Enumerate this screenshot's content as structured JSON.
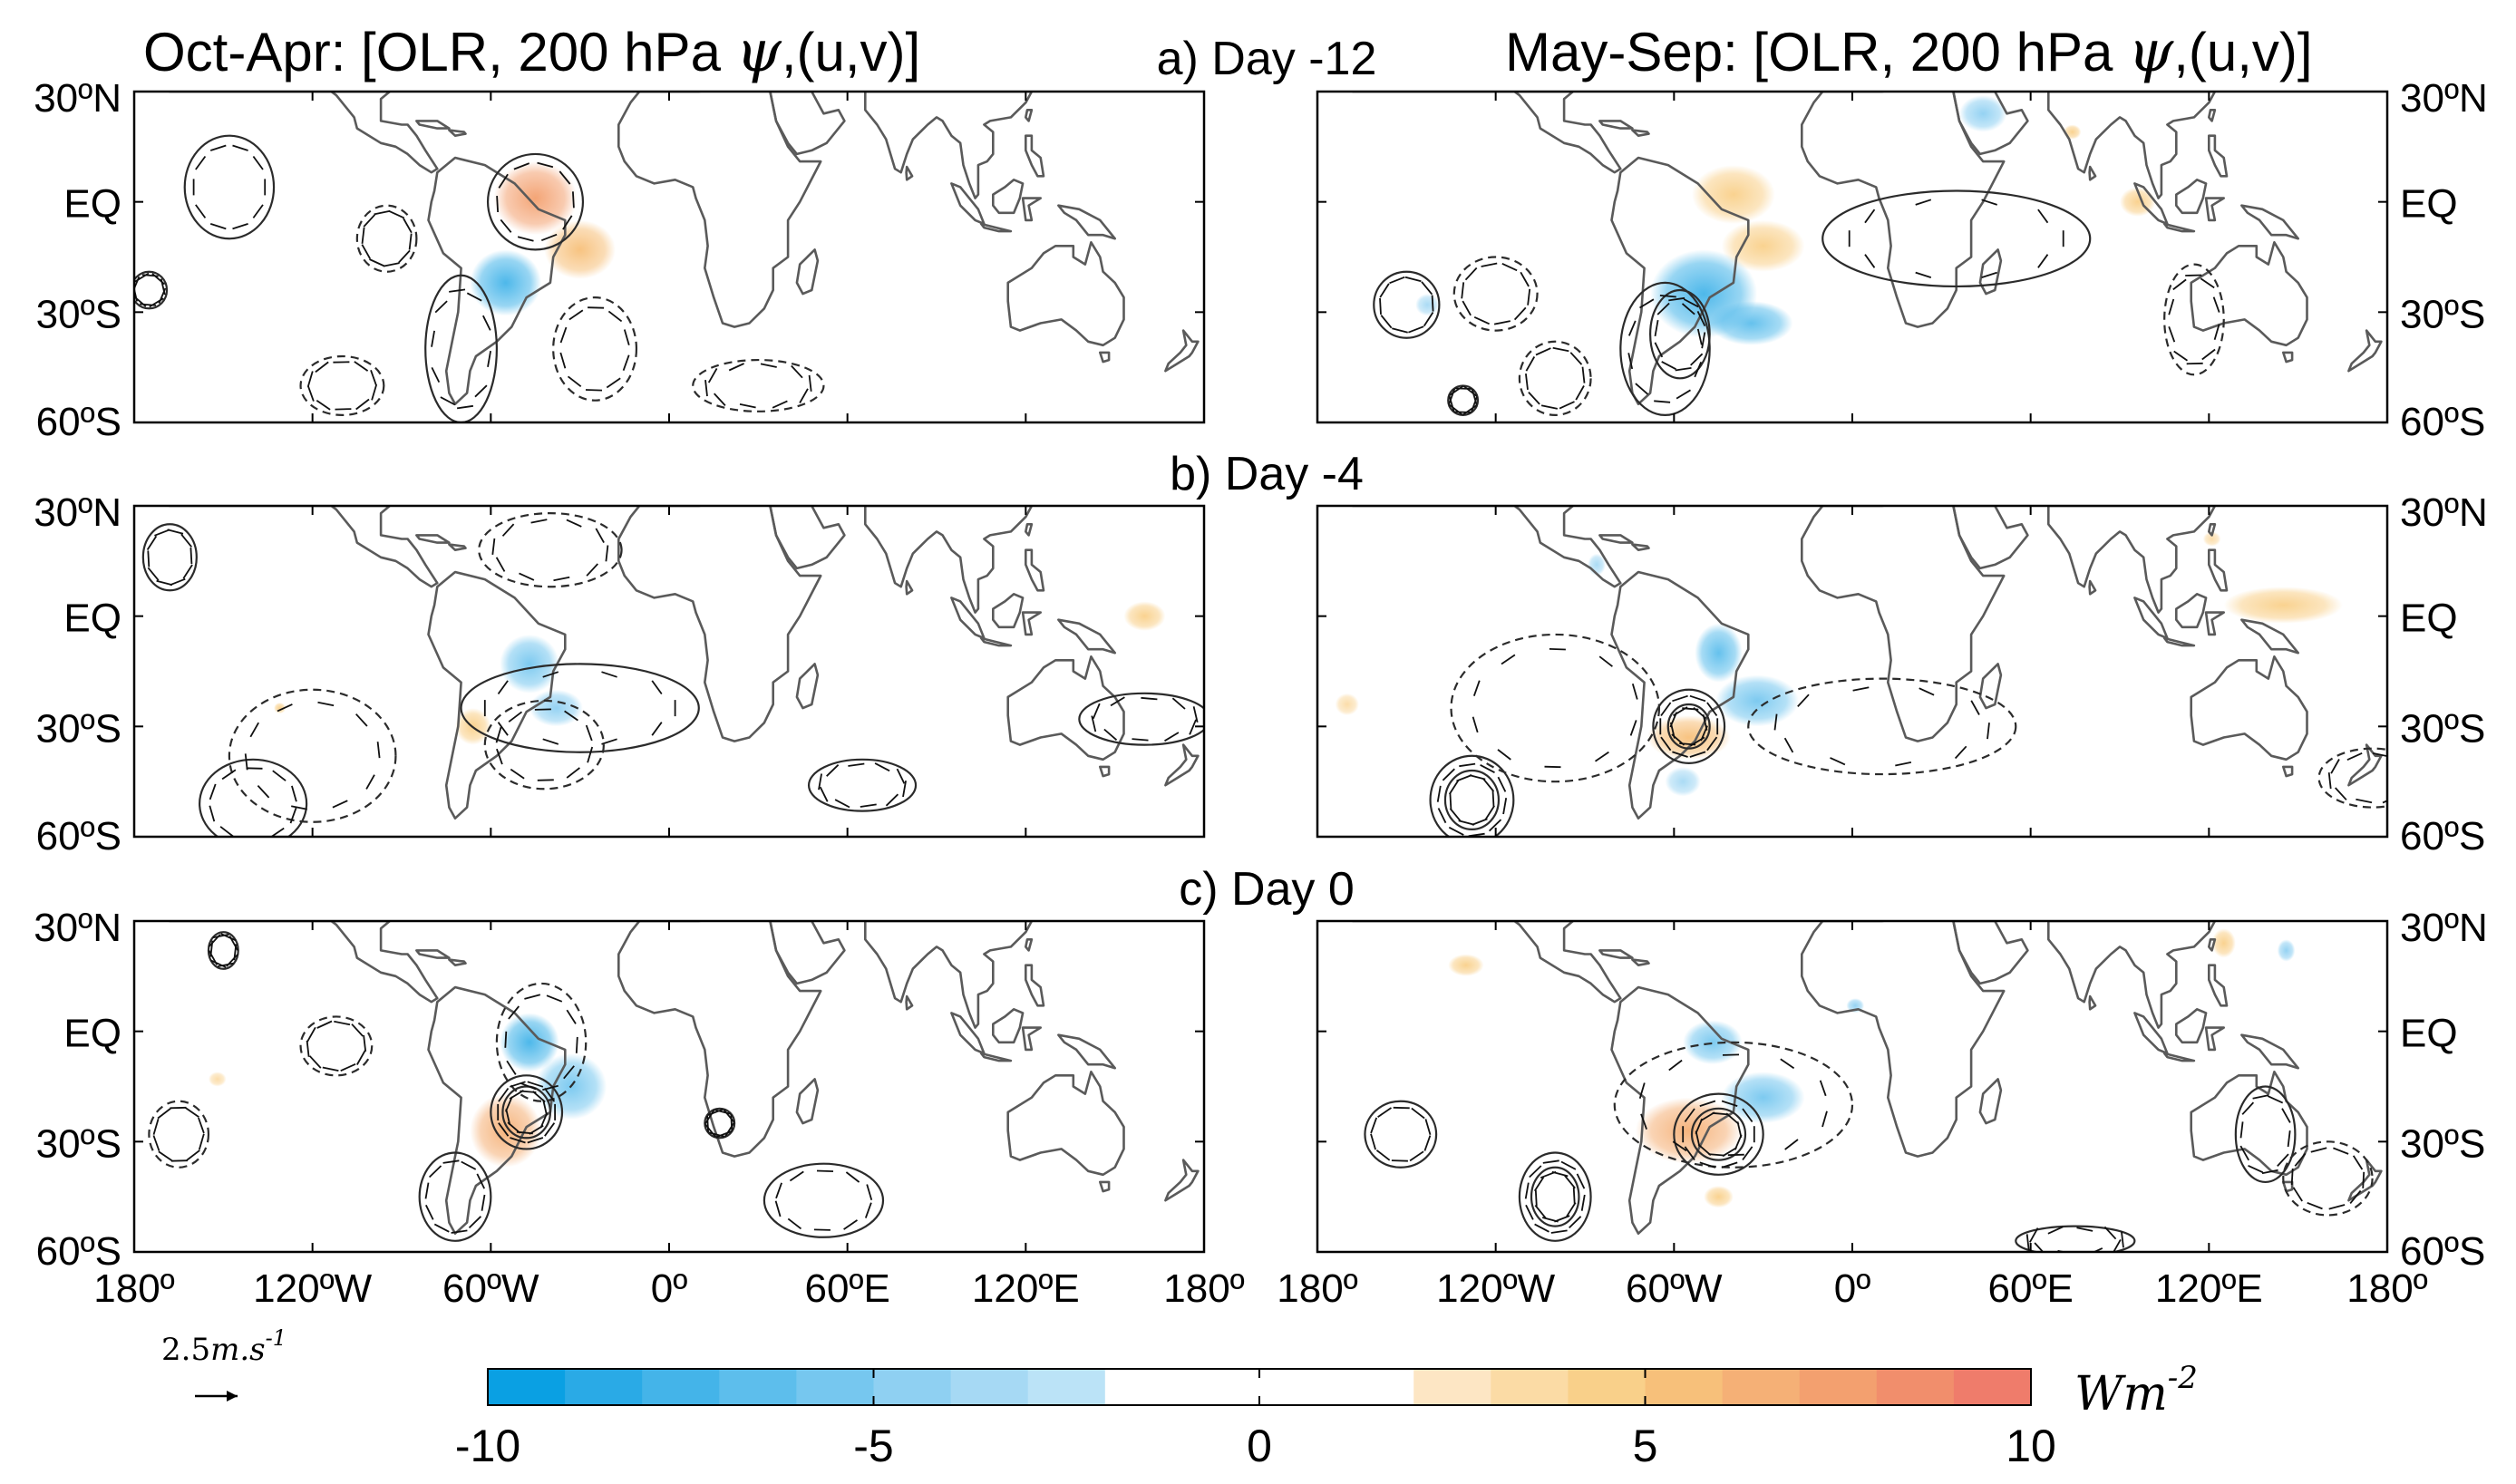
{
  "figure": {
    "left_title": "Oct-Apr: [OLR, 200 hPa ",
    "right_title": "May-Sep: [OLR, 200 hPa ",
    "psi_symbol": "ψ",
    "title_suffix": ",(u,v)]"
  },
  "rows": [
    {
      "label": "a) Day -12"
    },
    {
      "label": "b) Day -4"
    },
    {
      "label": "c) Day 0"
    }
  ],
  "chart_data": {
    "type": "heatmap",
    "description_units": "OLR anomaly shading (W m-2) with 200 hPa streamfunction contours and wind vectors",
    "x_ticks": [
      "180º",
      "120ºW",
      "60ºW",
      "0º",
      "60ºE",
      "120ºE",
      "180º"
    ],
    "x_range": [
      -180,
      180
    ],
    "y_ticks": [
      "30ºN",
      "EQ",
      "30ºS",
      "60ºS"
    ],
    "y_range": [
      -60,
      30
    ],
    "panels": [
      {
        "row": 0,
        "col": 0,
        "name": "oct-apr-day-12",
        "olr_blobs": [
          {
            "lon": -45,
            "lat": 1,
            "rx": 14,
            "ry": 10,
            "value": 7
          },
          {
            "lon": -30,
            "lat": -13,
            "rx": 12,
            "ry": 8,
            "value": 5
          },
          {
            "lon": -55,
            "lat": -22,
            "rx": 12,
            "ry": 9,
            "value": -8
          }
        ],
        "psi_contours": [
          {
            "lon": -148,
            "lat": 4,
            "rx": 15,
            "ry": 14,
            "style": "solid"
          },
          {
            "lon": -175,
            "lat": -24,
            "rx": 6,
            "ry": 5,
            "style": "solid"
          },
          {
            "lon": -70,
            "lat": -40,
            "rx": 12,
            "ry": 20,
            "style": "solid"
          },
          {
            "lon": -45,
            "lat": 0,
            "rx": 16,
            "ry": 13,
            "style": "solid"
          },
          {
            "lon": -25,
            "lat": -40,
            "rx": 14,
            "ry": 14,
            "style": "dashed"
          },
          {
            "lon": -95,
            "lat": -10,
            "rx": 10,
            "ry": 9,
            "style": "dashed"
          },
          {
            "lon": 30,
            "lat": -50,
            "rx": 22,
            "ry": 7,
            "style": "dashed"
          },
          {
            "lon": -110,
            "lat": -50,
            "rx": 14,
            "ry": 8,
            "style": "dashed"
          }
        ]
      },
      {
        "row": 0,
        "col": 1,
        "name": "may-sep-day-12",
        "olr_blobs": [
          {
            "lon": -40,
            "lat": 2,
            "rx": 14,
            "ry": 8,
            "value": 4
          },
          {
            "lon": -30,
            "lat": -12,
            "rx": 14,
            "ry": 7,
            "value": 4
          },
          {
            "lon": -50,
            "lat": -25,
            "rx": 18,
            "ry": 12,
            "value": -8
          },
          {
            "lon": -34,
            "lat": -33,
            "rx": 14,
            "ry": 6,
            "value": -7
          },
          {
            "lon": 44,
            "lat": 24,
            "rx": 8,
            "ry": 5,
            "value": -5
          },
          {
            "lon": -143,
            "lat": -28,
            "rx": 4,
            "ry": 3,
            "value": -4
          },
          {
            "lon": 96,
            "lat": 0,
            "rx": 6,
            "ry": 4,
            "value": 4
          },
          {
            "lon": 74,
            "lat": 19,
            "rx": 3,
            "ry": 2,
            "value": 4
          }
        ],
        "psi_contours": [
          {
            "lon": 35,
            "lat": -10,
            "rx": 45,
            "ry": 13,
            "style": "solid"
          },
          {
            "lon": -63,
            "lat": -40,
            "rx": 15,
            "ry": 18,
            "style": "solid"
          },
          {
            "lon": -58,
            "lat": -36,
            "rx": 10,
            "ry": 12,
            "style": "solid"
          },
          {
            "lon": -150,
            "lat": -28,
            "rx": 11,
            "ry": 9,
            "style": "solid"
          },
          {
            "lon": -131,
            "lat": -54,
            "rx": 5,
            "ry": 4,
            "style": "solid"
          },
          {
            "lon": -120,
            "lat": -25,
            "rx": 14,
            "ry": 10,
            "style": "dashed"
          },
          {
            "lon": -100,
            "lat": -48,
            "rx": 12,
            "ry": 10,
            "style": "dashed"
          },
          {
            "lon": 115,
            "lat": -32,
            "rx": 10,
            "ry": 15,
            "style": "dashed"
          }
        ]
      },
      {
        "row": 1,
        "col": 0,
        "name": "oct-apr-day-4",
        "olr_blobs": [
          {
            "lon": -47,
            "lat": -13,
            "rx": 10,
            "ry": 8,
            "value": -6
          },
          {
            "lon": -38,
            "lat": -25,
            "rx": 9,
            "ry": 5,
            "value": -5
          },
          {
            "lon": -66,
            "lat": -30,
            "rx": 6,
            "ry": 5,
            "value": 4
          },
          {
            "lon": 160,
            "lat": 0,
            "rx": 7,
            "ry": 4,
            "value": 4
          },
          {
            "lon": -131,
            "lat": -25,
            "rx": 2,
            "ry": 1.5,
            "value": 4
          }
        ],
        "psi_contours": [
          {
            "lon": -30,
            "lat": -25,
            "rx": 40,
            "ry": 12,
            "style": "solid"
          },
          {
            "lon": 160,
            "lat": -28,
            "rx": 22,
            "ry": 7,
            "style": "solid"
          },
          {
            "lon": 65,
            "lat": -46,
            "rx": 18,
            "ry": 7,
            "style": "solid"
          },
          {
            "lon": -168,
            "lat": 16,
            "rx": 9,
            "ry": 9,
            "style": "solid"
          },
          {
            "lon": -140,
            "lat": -51,
            "rx": 18,
            "ry": 12,
            "style": "solid"
          },
          {
            "lon": -40,
            "lat": 18,
            "rx": 24,
            "ry": 10,
            "style": "dashed"
          },
          {
            "lon": -120,
            "lat": -38,
            "rx": 28,
            "ry": 18,
            "style": "dashed"
          },
          {
            "lon": -42,
            "lat": -35,
            "rx": 20,
            "ry": 12,
            "style": "dashed"
          }
        ]
      },
      {
        "row": 1,
        "col": 1,
        "name": "may-sep-day-4",
        "olr_blobs": [
          {
            "lon": -45,
            "lat": -10,
            "rx": 8,
            "ry": 8,
            "value": -7
          },
          {
            "lon": -32,
            "lat": -23,
            "rx": 14,
            "ry": 7,
            "value": -6
          },
          {
            "lon": -55,
            "lat": -33,
            "rx": 14,
            "ry": 6,
            "value": 5
          },
          {
            "lon": 145,
            "lat": 3,
            "rx": 20,
            "ry": 5,
            "value": 4
          },
          {
            "lon": -57,
            "lat": -45,
            "rx": 6,
            "ry": 4,
            "value": -4
          },
          {
            "lon": -86,
            "lat": 14,
            "rx": 3,
            "ry": 3,
            "value": -4
          },
          {
            "lon": -170,
            "lat": -24,
            "rx": 4,
            "ry": 3,
            "value": 3
          },
          {
            "lon": 121,
            "lat": 21,
            "rx": 3,
            "ry": 2,
            "value": 3
          }
        ],
        "psi_contours": [
          {
            "lon": -55,
            "lat": -30,
            "rx": 12,
            "ry": 10,
            "style": "solid"
          },
          {
            "lon": -55,
            "lat": -30,
            "rx": 7,
            "ry": 6,
            "style": "solid"
          },
          {
            "lon": -128,
            "lat": -50,
            "rx": 14,
            "ry": 12,
            "style": "solid"
          },
          {
            "lon": -128,
            "lat": -50,
            "rx": 9,
            "ry": 8,
            "style": "solid"
          },
          {
            "lon": -100,
            "lat": -25,
            "rx": 35,
            "ry": 20,
            "style": "dashed"
          },
          {
            "lon": 10,
            "lat": -30,
            "rx": 45,
            "ry": 13,
            "style": "dashed"
          },
          {
            "lon": 175,
            "lat": -44,
            "rx": 18,
            "ry": 8,
            "style": "dashed"
          }
        ]
      },
      {
        "row": 2,
        "col": 0,
        "name": "oct-apr-day-0",
        "olr_blobs": [
          {
            "lon": -47,
            "lat": -3,
            "rx": 10,
            "ry": 8,
            "value": -8
          },
          {
            "lon": -33,
            "lat": -15,
            "rx": 12,
            "ry": 9,
            "value": -6
          },
          {
            "lon": -55,
            "lat": -27,
            "rx": 12,
            "ry": 10,
            "value": 6
          },
          {
            "lon": -152,
            "lat": -13,
            "rx": 3,
            "ry": 2,
            "value": 3
          }
        ],
        "psi_contours": [
          {
            "lon": -48,
            "lat": -22,
            "rx": 12,
            "ry": 10,
            "style": "solid"
          },
          {
            "lon": -48,
            "lat": -22,
            "rx": 8,
            "ry": 7,
            "style": "solid"
          },
          {
            "lon": -72,
            "lat": -45,
            "rx": 12,
            "ry": 12,
            "style": "solid"
          },
          {
            "lon": 17,
            "lat": -25,
            "rx": 5,
            "ry": 4,
            "style": "solid"
          },
          {
            "lon": 52,
            "lat": -46,
            "rx": 20,
            "ry": 10,
            "style": "solid"
          },
          {
            "lon": -150,
            "lat": 22,
            "rx": 5,
            "ry": 5,
            "style": "solid"
          },
          {
            "lon": -112,
            "lat": -4,
            "rx": 12,
            "ry": 8,
            "style": "dashed"
          },
          {
            "lon": -165,
            "lat": -28,
            "rx": 10,
            "ry": 9,
            "style": "dashed"
          },
          {
            "lon": -43,
            "lat": -3,
            "rx": 15,
            "ry": 16,
            "style": "dashed"
          }
        ]
      },
      {
        "row": 2,
        "col": 1,
        "name": "may-sep-day-0",
        "olr_blobs": [
          {
            "lon": -47,
            "lat": -3,
            "rx": 10,
            "ry": 6,
            "value": -6
          },
          {
            "lon": -30,
            "lat": -18,
            "rx": 14,
            "ry": 7,
            "value": -6
          },
          {
            "lon": -55,
            "lat": -27,
            "rx": 18,
            "ry": 9,
            "value": 6
          },
          {
            "lon": -130,
            "lat": 18,
            "rx": 6,
            "ry": 3,
            "value": 4
          },
          {
            "lon": 125,
            "lat": 24,
            "rx": 4,
            "ry": 4,
            "value": 4
          },
          {
            "lon": 146,
            "lat": 22,
            "rx": 3,
            "ry": 3,
            "value": -5
          },
          {
            "lon": 1,
            "lat": 7,
            "rx": 3,
            "ry": 2,
            "value": -5
          },
          {
            "lon": -45,
            "lat": -45,
            "rx": 5,
            "ry": 3,
            "value": 4
          }
        ],
        "psi_contours": [
          {
            "lon": -45,
            "lat": -28,
            "rx": 15,
            "ry": 11,
            "style": "solid"
          },
          {
            "lon": -45,
            "lat": -28,
            "rx": 9,
            "ry": 7,
            "style": "solid"
          },
          {
            "lon": -100,
            "lat": -45,
            "rx": 12,
            "ry": 12,
            "style": "solid"
          },
          {
            "lon": -100,
            "lat": -45,
            "rx": 8,
            "ry": 8,
            "style": "solid"
          },
          {
            "lon": -152,
            "lat": -28,
            "rx": 12,
            "ry": 9,
            "style": "solid"
          },
          {
            "lon": 139,
            "lat": -28,
            "rx": 10,
            "ry": 13,
            "style": "solid"
          },
          {
            "lon": 75,
            "lat": -57,
            "rx": 20,
            "ry": 4,
            "style": "solid"
          },
          {
            "lon": -40,
            "lat": -20,
            "rx": 40,
            "ry": 17,
            "style": "dashed"
          },
          {
            "lon": 160,
            "lat": -40,
            "rx": 15,
            "ry": 10,
            "style": "dashed"
          }
        ]
      }
    ],
    "colorbar": {
      "min": -10,
      "max": 10,
      "step": 1,
      "tick_labels": [
        "-10",
        "-5",
        "0",
        "5",
        "10"
      ],
      "tick_values": [
        -10,
        -5,
        0,
        5,
        10
      ],
      "units": "Wm",
      "units_exp": "-2",
      "colors": [
        "#0aa0e3",
        "#2aaae6",
        "#44b4e9",
        "#5dbeec",
        "#76c7ef",
        "#8fd0f2",
        "#a6d9f4",
        "#bbe3f7",
        "#ffffff",
        "#ffffff",
        "#ffffff",
        "#ffffff",
        "#fde6c4",
        "#fbdba5",
        "#f9d08a",
        "#f7c07a",
        "#f5b076",
        "#f3a06f",
        "#f18e6c",
        "#ef7c6b"
      ]
    },
    "reference_vector": {
      "label_value": "2.5",
      "label_units": "m.s",
      "label_exp": "-1"
    }
  },
  "colors": {
    "land": "#5a5a5a",
    "contour": "#2b2b2b",
    "frame": "#000000"
  }
}
